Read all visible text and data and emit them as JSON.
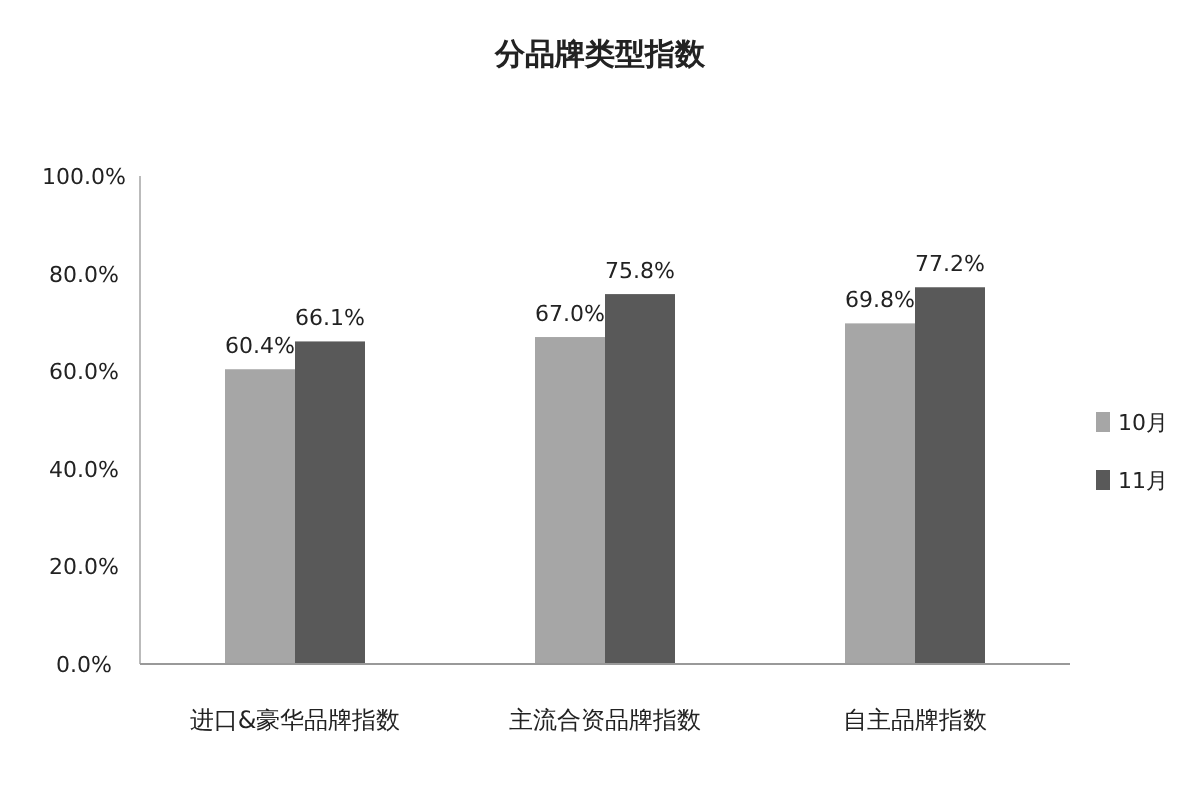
{
  "chart_data": {
    "type": "bar",
    "title": "分品牌类型指数",
    "categories": [
      "进口&豪华品牌指数",
      "主流合资品牌指数",
      "自主品牌指数"
    ],
    "series": [
      {
        "name": "10月",
        "color": "#a6a6a6",
        "values": [
          60.4,
          67.0,
          69.8
        ],
        "value_labels": [
          "60.4%",
          "67.0%",
          "69.8%"
        ]
      },
      {
        "name": "11月",
        "color": "#595959",
        "values": [
          66.1,
          75.8,
          77.2
        ],
        "value_labels": [
          "66.1%",
          "75.8%",
          "77.2%"
        ]
      }
    ],
    "ylim": [
      0,
      100
    ],
    "yticks": [
      {
        "value": 0,
        "label": "0.0%"
      },
      {
        "value": 20,
        "label": "20.0%"
      },
      {
        "value": 40,
        "label": "40.0%"
      },
      {
        "value": 60,
        "label": "60.0%"
      },
      {
        "value": 80,
        "label": "80.0%"
      },
      {
        "value": 100,
        "label": "100.0%"
      }
    ],
    "legend": "right",
    "grid": false
  }
}
